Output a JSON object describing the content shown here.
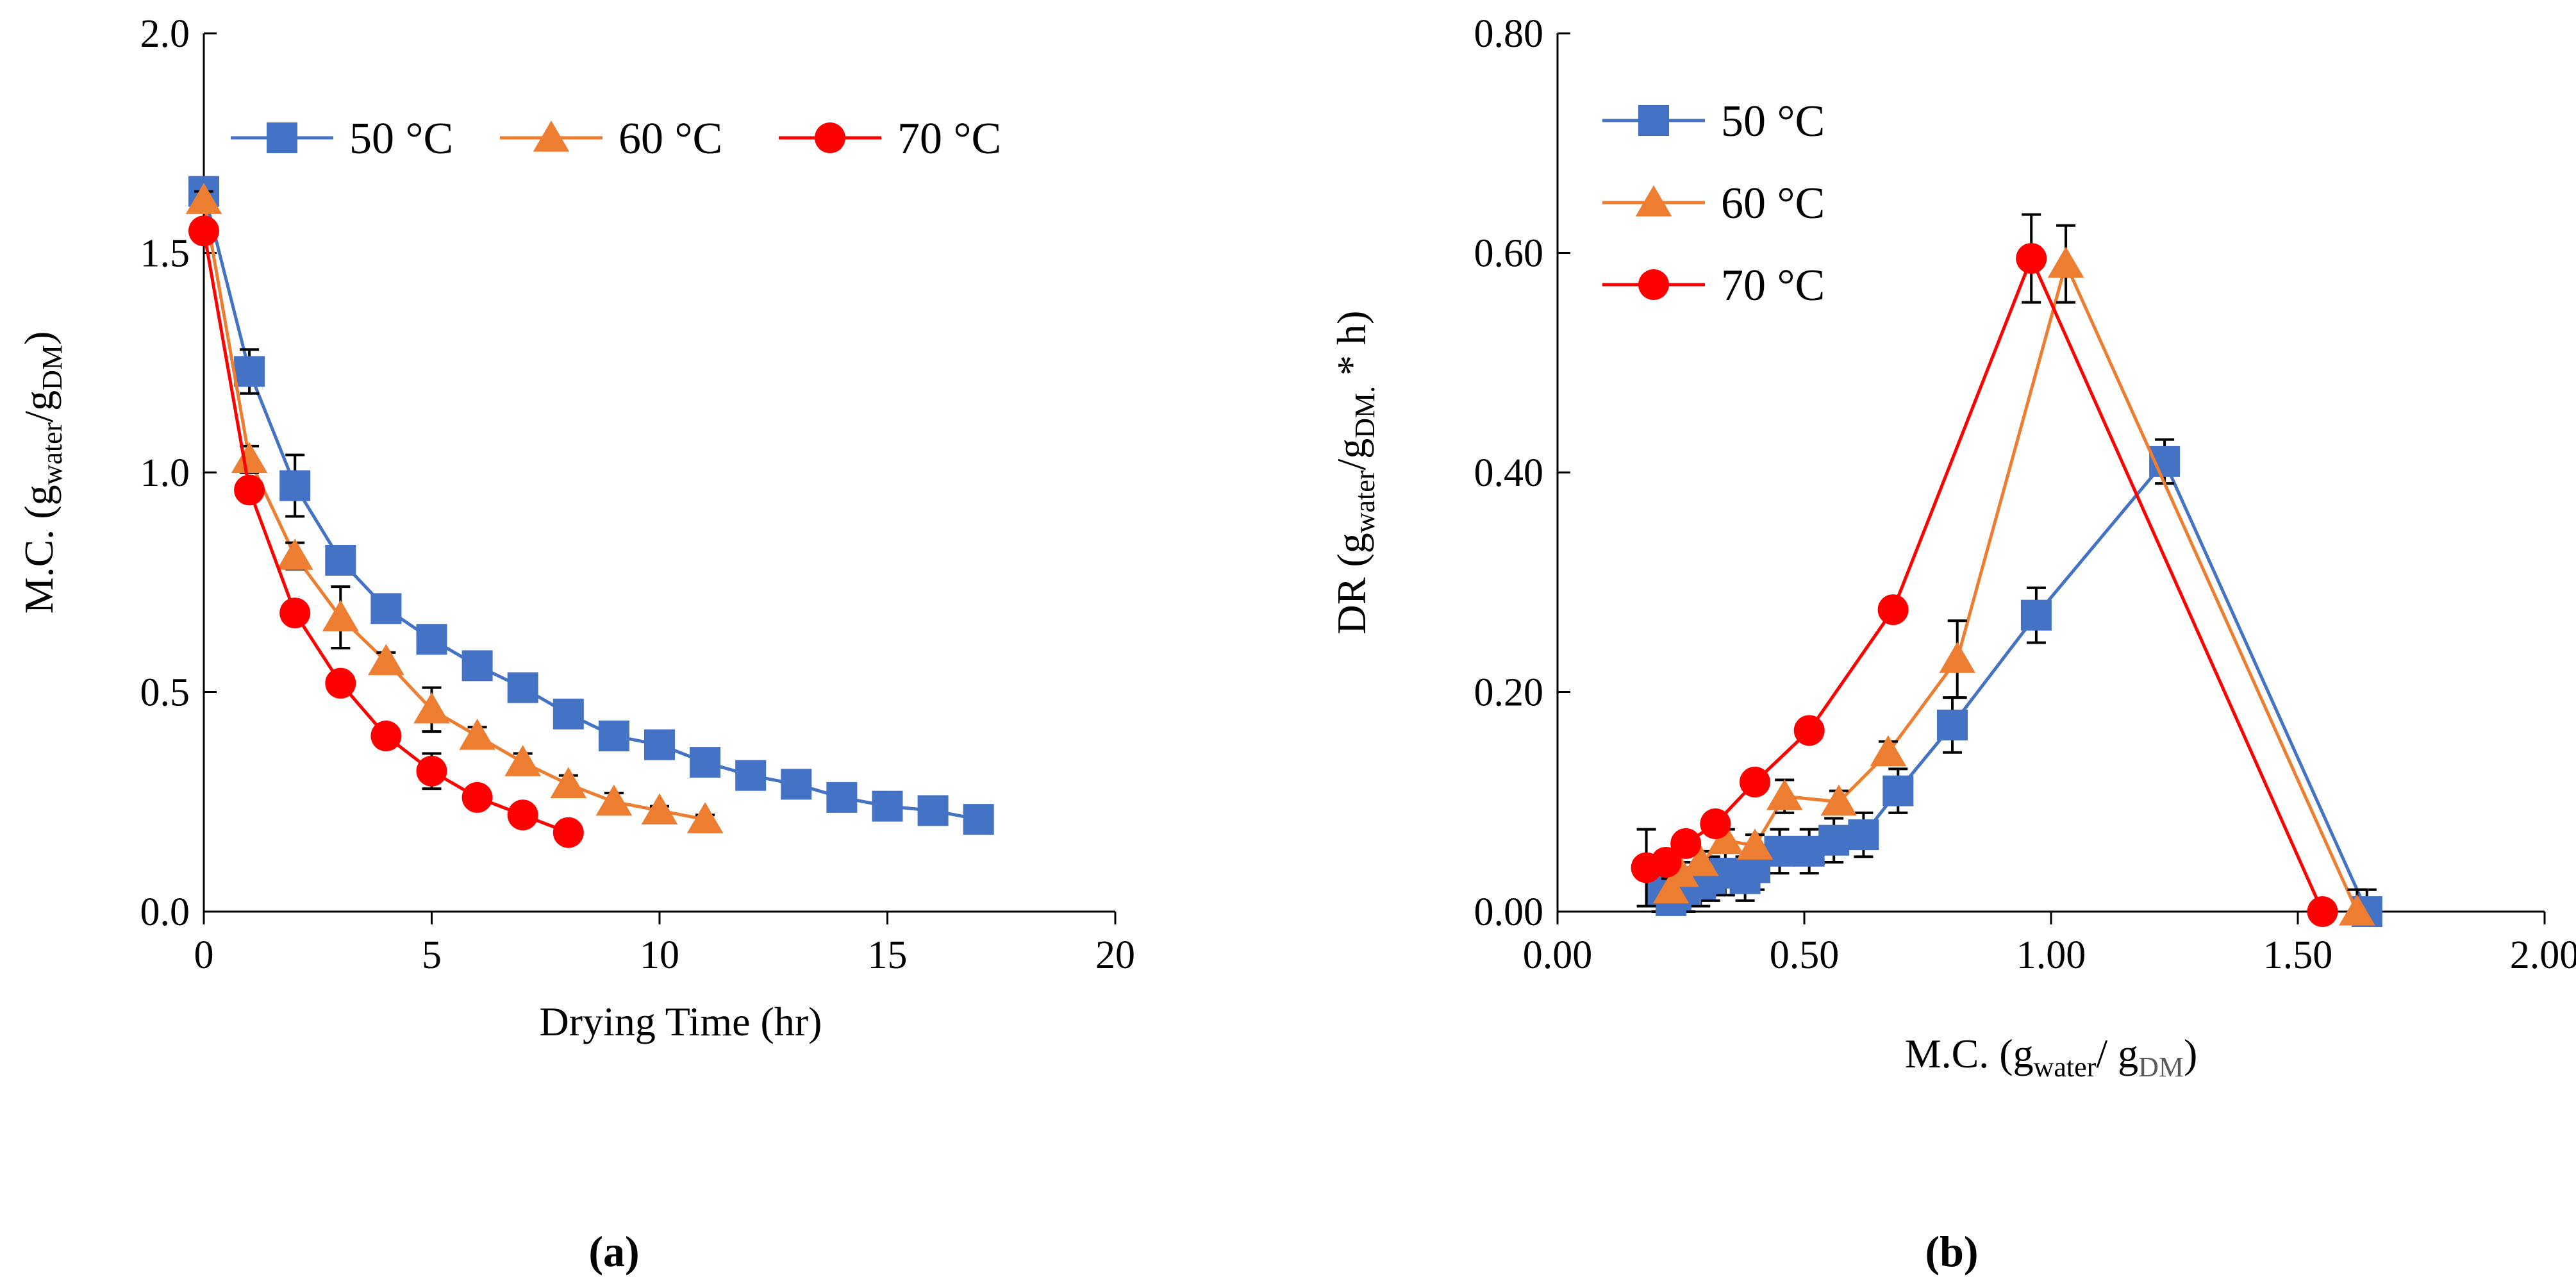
{
  "chart_data": [
    {
      "type": "line",
      "panel_label": "(a)",
      "xlabel": "Drying Time (hr)",
      "ylabel": {
        "main": "M.C. (g",
        "sub1": "water",
        "mid": "/g",
        "sub2": "DM",
        "end": ")"
      },
      "xlim": [
        0,
        20
      ],
      "ylim": [
        0,
        2
      ],
      "x_ticks": [
        "0",
        "5",
        "10",
        "15",
        "20"
      ],
      "x_tick_values": [
        0,
        5,
        10,
        15,
        20
      ],
      "y_ticks": [
        "0.0",
        "0.5",
        "1.0",
        "1.5",
        "2.0"
      ],
      "y_tick_values": [
        0,
        0.5,
        1,
        1.5,
        2
      ],
      "grid": false,
      "legend_position": "top",
      "series": [
        {
          "name": "50 °C",
          "color": "#4472C4",
          "marker": "square",
          "x": [
            0,
            1,
            2,
            3,
            4,
            5,
            6,
            7,
            8,
            9,
            10,
            11,
            12,
            13,
            14,
            15,
            16,
            17
          ],
          "y": [
            1.64,
            1.23,
            0.97,
            0.8,
            0.69,
            0.62,
            0.56,
            0.51,
            0.45,
            0.4,
            0.38,
            0.34,
            0.31,
            0.29,
            0.26,
            0.24,
            0.23,
            0.21
          ],
          "err": [
            0.02,
            0.05,
            0.07,
            0.03,
            0.02,
            0.02,
            0.02,
            0.01,
            0.01,
            0.01,
            0.01,
            0.01,
            0.01,
            0.01,
            0.01,
            0.01,
            0.01,
            0.01
          ]
        },
        {
          "name": "60 °C",
          "color": "#ED7D31",
          "marker": "triangle",
          "x": [
            0,
            1,
            2,
            3,
            4,
            5,
            6,
            7,
            8,
            9,
            10,
            11
          ],
          "y": [
            1.62,
            1.03,
            0.81,
            0.67,
            0.57,
            0.46,
            0.4,
            0.34,
            0.29,
            0.25,
            0.23,
            0.21
          ],
          "err": [
            0.02,
            0.03,
            0.03,
            0.07,
            0.02,
            0.05,
            0.02,
            0.02,
            0.02,
            0.02,
            0.01,
            0.01
          ]
        },
        {
          "name": "70 °C",
          "color": "#FF0000",
          "marker": "circle",
          "x": [
            0,
            1,
            2,
            3,
            4,
            5,
            6,
            7,
            8
          ],
          "y": [
            1.55,
            0.96,
            0.68,
            0.52,
            0.4,
            0.32,
            0.26,
            0.22,
            0.18
          ],
          "err": [
            0.02,
            0.02,
            0.02,
            0.02,
            0.02,
            0.04,
            0.02,
            0.01,
            0.01
          ]
        }
      ]
    },
    {
      "type": "line",
      "panel_label": "(b)",
      "xlabel": {
        "main": "M.C. (g",
        "sub1": "water",
        "mid": "/ g",
        "sub2": "DM",
        "end": ")"
      },
      "ylabel": {
        "main": "DR (g",
        "sub1": "water",
        "mid": "/g",
        "sub2": "DM.",
        "end": " * h)"
      },
      "xlim": [
        0,
        2
      ],
      "ylim": [
        0,
        0.8
      ],
      "x_ticks": [
        "0.00",
        "0.50",
        "1.00",
        "1.50",
        "2.00"
      ],
      "x_tick_values": [
        0,
        0.5,
        1,
        1.5,
        2
      ],
      "y_ticks": [
        "0.00",
        "0.20",
        "0.40",
        "0.60",
        "0.80"
      ],
      "y_tick_values": [
        0,
        0.2,
        0.4,
        0.6,
        0.8
      ],
      "grid": false,
      "legend_position": "top-left",
      "series": [
        {
          "name": "50 °C",
          "color": "#4472C4",
          "marker": "square",
          "x": [
            1.64,
            1.23,
            0.97,
            0.8,
            0.69,
            0.62,
            0.56,
            0.51,
            0.45,
            0.4,
            0.38,
            0.34,
            0.31,
            0.29,
            0.26,
            0.24,
            0.23,
            0.21
          ],
          "y": [
            0.0,
            0.41,
            0.27,
            0.17,
            0.11,
            0.07,
            0.065,
            0.055,
            0.055,
            0.04,
            0.03,
            0.035,
            0.03,
            0.025,
            0.02,
            0.015,
            0.01,
            0.02
          ],
          "err": [
            0.02,
            0.02,
            0.025,
            0.025,
            0.02,
            0.02,
            0.02,
            0.02,
            0.02,
            0.02,
            0.02,
            0.02,
            0.02,
            0.02,
            0.02,
            0.02,
            0.02,
            0.02
          ]
        },
        {
          "name": "60 °C",
          "color": "#ED7D31",
          "marker": "triangle",
          "x": [
            1.62,
            1.03,
            0.81,
            0.67,
            0.57,
            0.46,
            0.4,
            0.34,
            0.29,
            0.25,
            0.23
          ],
          "y": [
            0.0,
            0.59,
            0.23,
            0.145,
            0.1,
            0.105,
            0.06,
            0.065,
            0.045,
            0.035,
            0.02
          ],
          "err": [
            0.02,
            0.035,
            0.035,
            0.01,
            0.01,
            0.015,
            0.01,
            0.01,
            0.01,
            0.01,
            0.01
          ]
        },
        {
          "name": "70 °C",
          "color": "#FF0000",
          "marker": "circle",
          "x": [
            1.55,
            0.96,
            0.68,
            0.51,
            0.4,
            0.32,
            0.26,
            0.22,
            0.18
          ],
          "y": [
            0.0,
            0.595,
            0.275,
            0.165,
            0.118,
            0.08,
            0.062,
            0.045,
            0.04
          ],
          "err": [
            0.01,
            0.04,
            0.01,
            0.01,
            0.01,
            0.01,
            0.01,
            0.01,
            0.035
          ]
        }
      ]
    }
  ]
}
